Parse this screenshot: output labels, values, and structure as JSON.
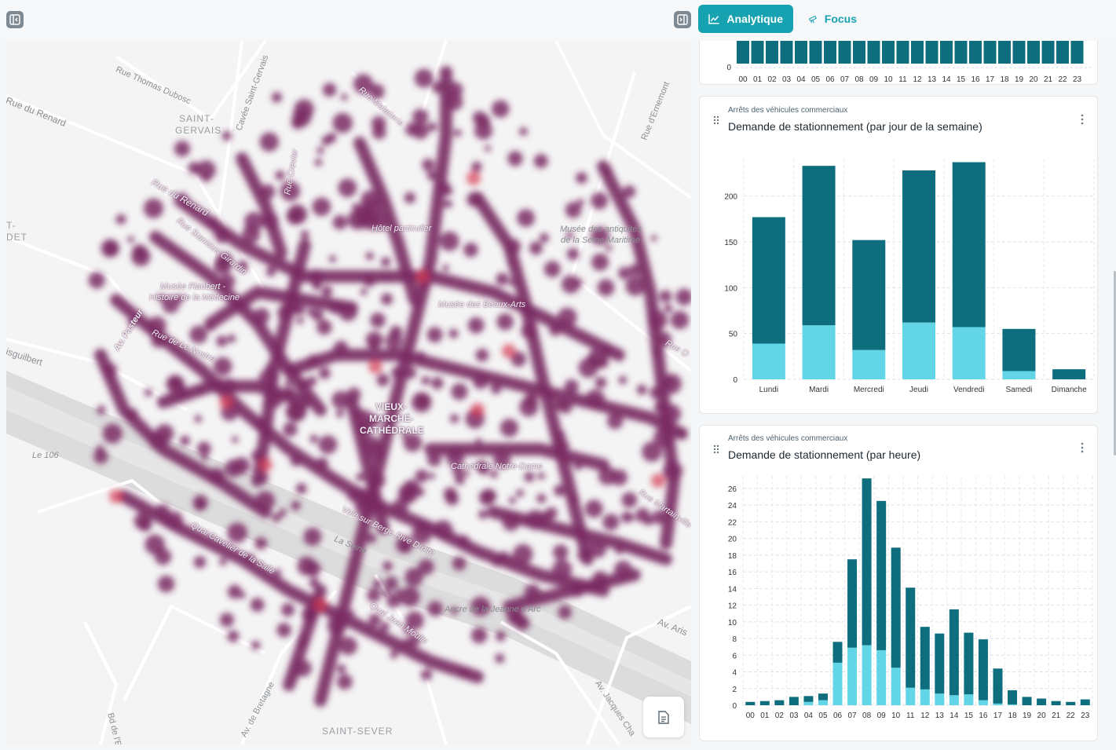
{
  "topbar": {
    "left_toggle_icon": "panel-left-icon",
    "right_toggle_icon": "panel-right-icon",
    "tabs": [
      {
        "label": "Analytique",
        "icon": "line-chart-icon",
        "active": true
      },
      {
        "label": "Focus",
        "icon": "telescope-icon",
        "active": false
      }
    ]
  },
  "map": {
    "labels": [
      "Rue Thomas Dubosc",
      "Rue du Renard",
      "SAINT-",
      "GERVAIS",
      "Cavée Saint-Gervais",
      "Rue Malatierie",
      "Rue d'Ernemont",
      "Rue Crevier",
      "Rue du Renard",
      "Rue Stanislas Girardin",
      "T-",
      "DET",
      "Hôtel particulier",
      "Musée des antiquités",
      "de la Seine-Maritime",
      "Musée Flaubert -",
      "Histoire de la Médecine",
      "Av. Pasteur",
      "Musée des Beaux-Arts",
      "Rue de Le Nostre",
      "Rue O",
      "isguilbert",
      "Le 106",
      "VIEUX-",
      "MARCHÉ-",
      "CATHÉDRALE",
      "Cathédrale Notre-Dame",
      "Rue Martainville",
      "Voie sur Berge Rive Droite",
      "La Seine",
      "Quai Cavelier de la Salle",
      "Quai Jean Moulin",
      "Ancre de la Jeanne d'Arc",
      "Av. Aris",
      "Av. Jacques Cha",
      "Bd de l'E",
      "Av. de Bretagne",
      "SAINT-SEVER"
    ],
    "heatmap_color": "#7a2a63",
    "hot_color": "#d63a55",
    "report_icon": "document-icon"
  },
  "top_chart": {
    "y_zero_label": "0",
    "hours": [
      "00",
      "01",
      "02",
      "03",
      "04",
      "05",
      "06",
      "07",
      "08",
      "09",
      "10",
      "11",
      "12",
      "13",
      "14",
      "15",
      "16",
      "17",
      "18",
      "19",
      "20",
      "21",
      "22",
      "23"
    ],
    "bar_color": "#0f6e7d"
  },
  "weekday_card": {
    "subtitle": "Arrêts des véhicules commerciaux",
    "title": "Demande de stationnement (par jour de la semaine)",
    "drag_icon": "drag-handle-icon",
    "more_icon": "more-vertical-icon",
    "chart_data": {
      "type": "bar",
      "stacked": true,
      "categories": [
        "Lundi",
        "Mardi",
        "Mercredi",
        "Jeudi",
        "Vendredi",
        "Samedi",
        "Dimanche"
      ],
      "series": [
        {
          "values": [
            39,
            59,
            32,
            62,
            57,
            9,
            0
          ],
          "color": "#62d6e6"
        },
        {
          "values": [
            138,
            174,
            120,
            166,
            180,
            46,
            11
          ],
          "color": "#0f6e7d"
        }
      ],
      "yticks": [
        0,
        50,
        100,
        150,
        200
      ],
      "ylim": [
        0,
        240
      ],
      "grid": true
    }
  },
  "hourly_card": {
    "subtitle": "Arrêts des véhicules commerciaux",
    "title": "Demande de stationnement (par heure)",
    "drag_icon": "drag-handle-icon",
    "more_icon": "more-vertical-icon",
    "chart_data": {
      "type": "bar",
      "stacked": true,
      "categories": [
        "00",
        "01",
        "02",
        "03",
        "04",
        "05",
        "06",
        "07",
        "08",
        "09",
        "10",
        "11",
        "12",
        "13",
        "14",
        "15",
        "16",
        "17",
        "18",
        "19",
        "20",
        "21",
        "22",
        "23"
      ],
      "series": [
        {
          "values": [
            0,
            0,
            0,
            0,
            0.4,
            0.6,
            5.1,
            6.9,
            7.2,
            6.6,
            4.5,
            2.1,
            1.9,
            1.4,
            1.2,
            1.3,
            0.6,
            0.2,
            0.1,
            0,
            0,
            0,
            0,
            0
          ],
          "color": "#62d6e6"
        },
        {
          "values": [
            0.4,
            0.5,
            0.6,
            1.0,
            0.7,
            0.8,
            2.5,
            10.6,
            20.0,
            17.9,
            14.4,
            12.0,
            7.5,
            7.2,
            10.3,
            7.4,
            7.3,
            4.2,
            1.7,
            1.0,
            0.8,
            0.5,
            0.4,
            0.7
          ],
          "color": "#0f6e7d"
        }
      ],
      "yticks": [
        0,
        2,
        4,
        6,
        8,
        10,
        12,
        14,
        16,
        18,
        20,
        22,
        24,
        26
      ],
      "ylim": [
        0,
        27.5
      ],
      "grid": true
    }
  }
}
